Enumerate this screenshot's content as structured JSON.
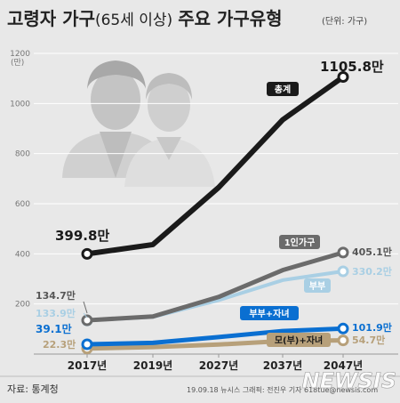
{
  "chart_data": {
    "type": "line",
    "title": "고령자 가구",
    "title_paren": "(65세 이상)",
    "title_rest": "주요 가구유형",
    "unit_note": "(단위: 가구)",
    "y_unit": "(만)",
    "categories": [
      "2017년",
      "2019년",
      "2027년",
      "2037년",
      "2047년"
    ],
    "ylim": [
      0,
      1200
    ],
    "yticks": [
      200,
      400,
      600,
      800,
      1000,
      1200
    ],
    "grid": true,
    "series": [
      {
        "name": "총계",
        "color": "#1a1a1a",
        "values": [
          399.8,
          437,
          665,
          935,
          1105.8
        ],
        "start_label": "399.8만",
        "end_label": "1105.8만"
      },
      {
        "name": "1인가구",
        "color": "#6b6b6b",
        "values": [
          134.7,
          150,
          228,
          335,
          405.1
        ],
        "start_label": "134.7만",
        "end_label": "405.1만"
      },
      {
        "name": "부부",
        "color": "#a9cfe4",
        "values": [
          133.9,
          148,
          215,
          295,
          330.2
        ],
        "start_label": "133.9만",
        "end_label": "330.2만"
      },
      {
        "name": "부부+자녀",
        "color": "#0a6fd1",
        "values": [
          39.1,
          45,
          68,
          92,
          101.9
        ],
        "start_label": "39.1만",
        "end_label": "101.9만"
      },
      {
        "name": "모(부)+자녀",
        "color": "#b7a07a",
        "values": [
          22.3,
          28,
          38,
          52,
          54.7
        ],
        "start_label": "22.3만",
        "end_label": "54.7만"
      }
    ],
    "source": "자료: 통계청",
    "credit": "19.09.18 뉴시스 그래픽: 전진우 기자 618tue@newsis.com",
    "watermark": "NEWSIS"
  }
}
